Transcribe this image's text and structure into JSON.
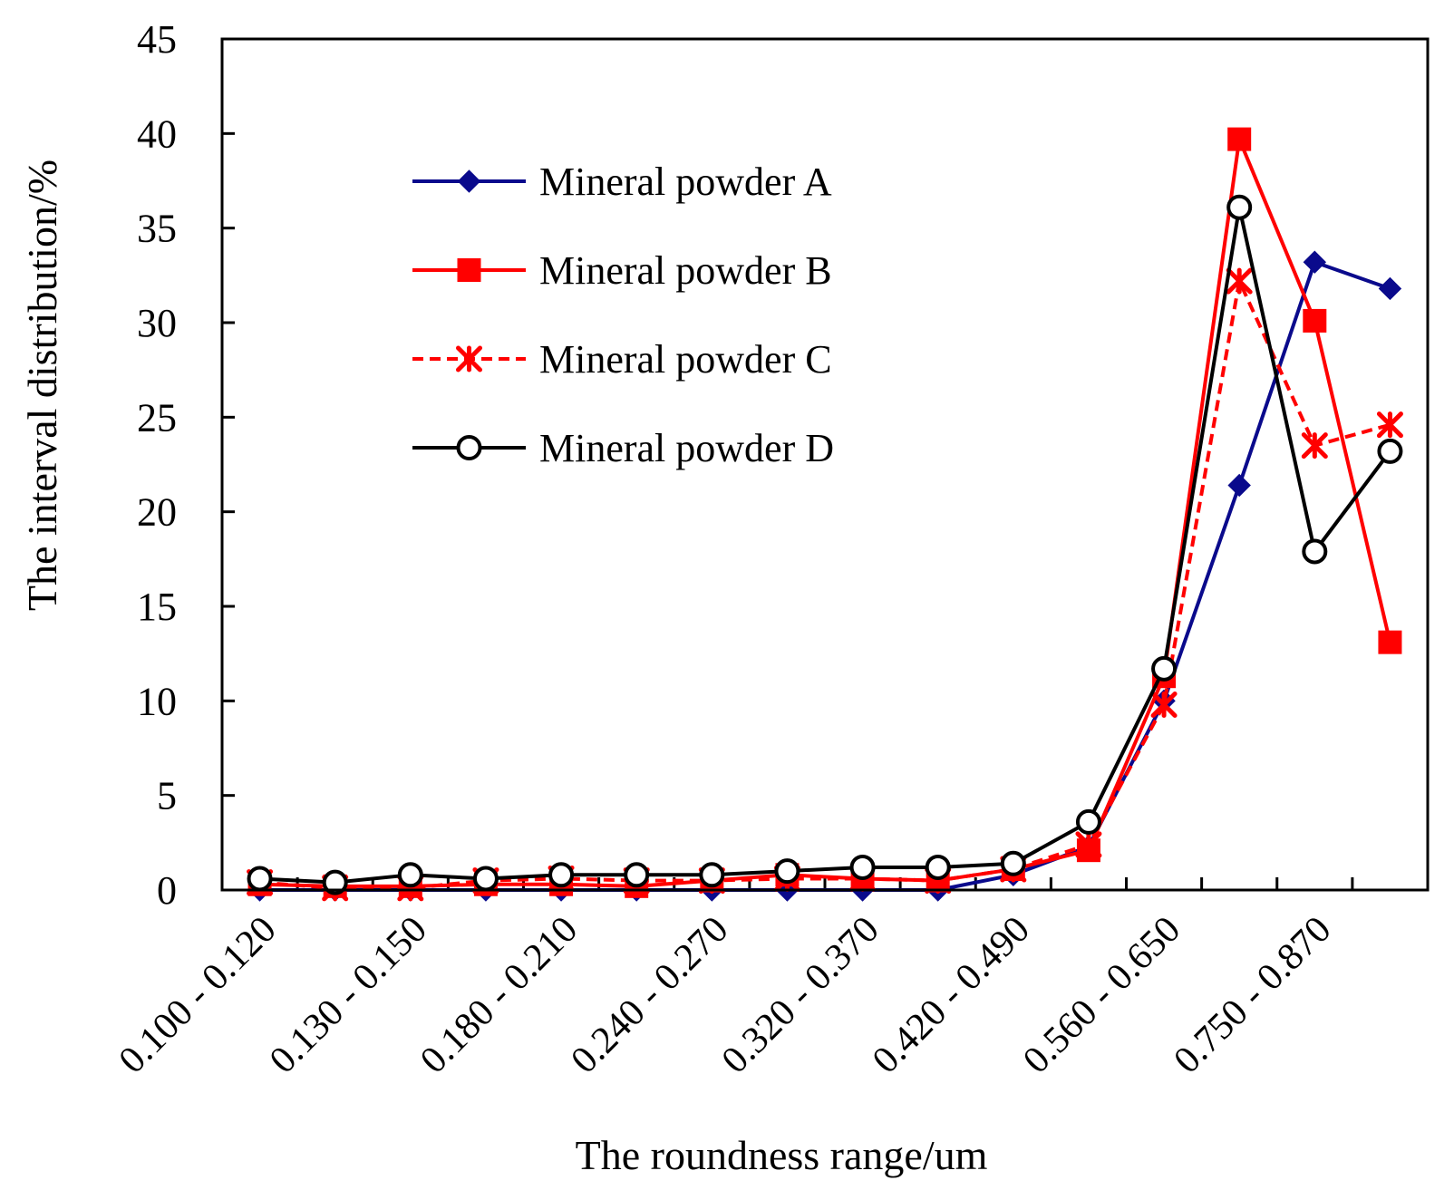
{
  "chart_data": {
    "type": "line",
    "title": "",
    "xlabel": "The roundness range/um",
    "ylabel": "The interval distribution/%",
    "ylim": [
      0,
      45
    ],
    "yticks": [
      0,
      5,
      10,
      15,
      20,
      25,
      30,
      35,
      40,
      45
    ],
    "grid": false,
    "legend_position": "top-left",
    "categories": [
      "0.100 - 0.120",
      "",
      "0.130 - 0.150",
      "",
      "0.180 - 0.210",
      "",
      "0.240 - 0.270",
      "",
      "0.320 - 0.370",
      "",
      "0.420 - 0.490",
      "",
      "0.560 - 0.650",
      "",
      "0.750 - 0.870",
      ""
    ],
    "series": [
      {
        "name": "Mineral powder A",
        "color": "#0a0a8c",
        "marker": "diamond",
        "dash": "solid",
        "values": [
          0,
          0,
          0,
          0,
          0,
          0,
          0,
          0,
          0,
          0,
          0.8,
          2.3,
          10,
          21.4,
          33.2,
          31.8
        ]
      },
      {
        "name": "Mineral powder B",
        "color": "#ff0000",
        "marker": "square",
        "dash": "solid",
        "values": [
          0.3,
          0.2,
          0.2,
          0.3,
          0.3,
          0.2,
          0.5,
          0.8,
          0.6,
          0.5,
          1.1,
          2.1,
          11.3,
          39.7,
          30.1,
          13.1
        ]
      },
      {
        "name": "Mineral powder C",
        "color": "#ff0000",
        "marker": "asterisk",
        "dash": "dashed",
        "values": [
          0.4,
          0.1,
          0.1,
          0.5,
          0.6,
          0.5,
          0.5,
          0.6,
          0.6,
          0.5,
          1.1,
          2.4,
          9.8,
          32.2,
          23.5,
          24.6
        ]
      },
      {
        "name": "Mineral powder D",
        "color": "#000000",
        "marker": "circle",
        "dash": "solid",
        "values": [
          0.6,
          0.4,
          0.8,
          0.6,
          0.8,
          0.8,
          0.8,
          1.0,
          1.2,
          1.2,
          1.4,
          3.6,
          11.7,
          36.1,
          17.9,
          23.2
        ]
      }
    ]
  }
}
